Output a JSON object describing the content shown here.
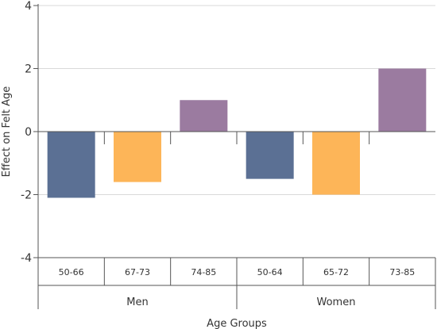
{
  "chart_data": {
    "type": "bar",
    "title": "",
    "xlabel": "Age Groups",
    "ylabel": "Effect on Felt Age",
    "ylim": [
      -4,
      4
    ],
    "yticks": [
      "4",
      "2",
      "0",
      "-2",
      "-4"
    ],
    "grid": true,
    "legend": "none",
    "groups": [
      {
        "name": "Men",
        "categories": [
          "50-66",
          "67-73",
          "74-85"
        ],
        "values": [
          -2.1,
          -1.6,
          1.0
        ],
        "colors": [
          "#5b7094",
          "#fdb558",
          "#9b7ba0"
        ]
      },
      {
        "name": "Women",
        "categories": [
          "50-64",
          "65-72",
          "73-85"
        ],
        "values": [
          -1.5,
          -2.0,
          2.0
        ],
        "colors": [
          "#5b7094",
          "#fdb558",
          "#9b7ba0"
        ]
      }
    ]
  }
}
